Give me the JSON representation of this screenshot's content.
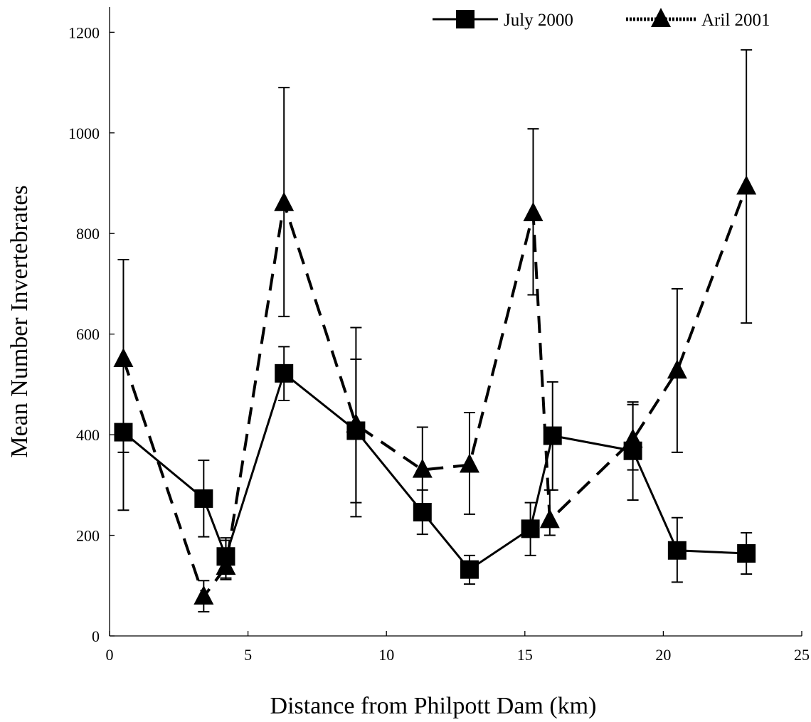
{
  "chart_data": {
    "type": "line",
    "title": "",
    "xlabel": "Distance from Philpott Dam (km)",
    "ylabel": "Mean Number Invertebrates",
    "xlim": [
      0,
      25
    ],
    "ylim": [
      0,
      1250
    ],
    "xticks": [
      0,
      5,
      10,
      15,
      20,
      25
    ],
    "yticks": [
      0,
      200,
      400,
      600,
      800,
      1000,
      1200
    ],
    "grid": false,
    "legend_position": "top-right",
    "series": [
      {
        "name": "July 2000",
        "marker": "square",
        "line": "solid",
        "color": "#000000",
        "points": [
          {
            "x": 0.5,
            "y": 405,
            "lo": 250,
            "hi": 405
          },
          {
            "x": 3.4,
            "y": 273,
            "lo": 197,
            "hi": 349
          },
          {
            "x": 4.2,
            "y": 158,
            "lo": 112,
            "hi": 195
          },
          {
            "x": 6.3,
            "y": 522,
            "lo": 468,
            "hi": 575
          },
          {
            "x": 8.9,
            "y": 408,
            "lo": 265,
            "hi": 550
          },
          {
            "x": 11.3,
            "y": 246,
            "lo": 202,
            "hi": 290
          },
          {
            "x": 13.0,
            "y": 132,
            "lo": 103,
            "hi": 160
          },
          {
            "x": 15.2,
            "y": 213,
            "lo": 160,
            "hi": 265
          },
          {
            "x": 16.0,
            "y": 398,
            "lo": 290,
            "hi": 505
          },
          {
            "x": 18.9,
            "y": 368,
            "lo": 270,
            "hi": 465
          },
          {
            "x": 20.5,
            "y": 170,
            "lo": 107,
            "hi": 235
          },
          {
            "x": 23.0,
            "y": 164,
            "lo": 123,
            "hi": 205
          }
        ]
      },
      {
        "name": "Aril 2001",
        "marker": "triangle",
        "line": "dashed",
        "color": "#000000",
        "points": [
          {
            "x": 0.5,
            "y": 550,
            "lo": 365,
            "hi": 748
          },
          {
            "x": 3.4,
            "y": 78,
            "lo": 48,
            "hi": 110
          },
          {
            "x": 4.2,
            "y": 137,
            "lo": 115,
            "hi": 190
          },
          {
            "x": 6.3,
            "y": 860,
            "lo": 635,
            "hi": 1090
          },
          {
            "x": 8.9,
            "y": 420,
            "lo": 237,
            "hi": 613
          },
          {
            "x": 11.3,
            "y": 330,
            "lo": 245,
            "hi": 415
          },
          {
            "x": 13.0,
            "y": 340,
            "lo": 242,
            "hi": 444
          },
          {
            "x": 15.3,
            "y": 840,
            "lo": 678,
            "hi": 1008
          },
          {
            "x": 15.9,
            "y": 230,
            "lo": 200,
            "hi": 290
          },
          {
            "x": 18.9,
            "y": 390,
            "lo": 330,
            "hi": 460
          },
          {
            "x": 20.5,
            "y": 527,
            "lo": 365,
            "hi": 690
          },
          {
            "x": 23.0,
            "y": 893,
            "lo": 622,
            "hi": 1165
          }
        ]
      }
    ]
  }
}
